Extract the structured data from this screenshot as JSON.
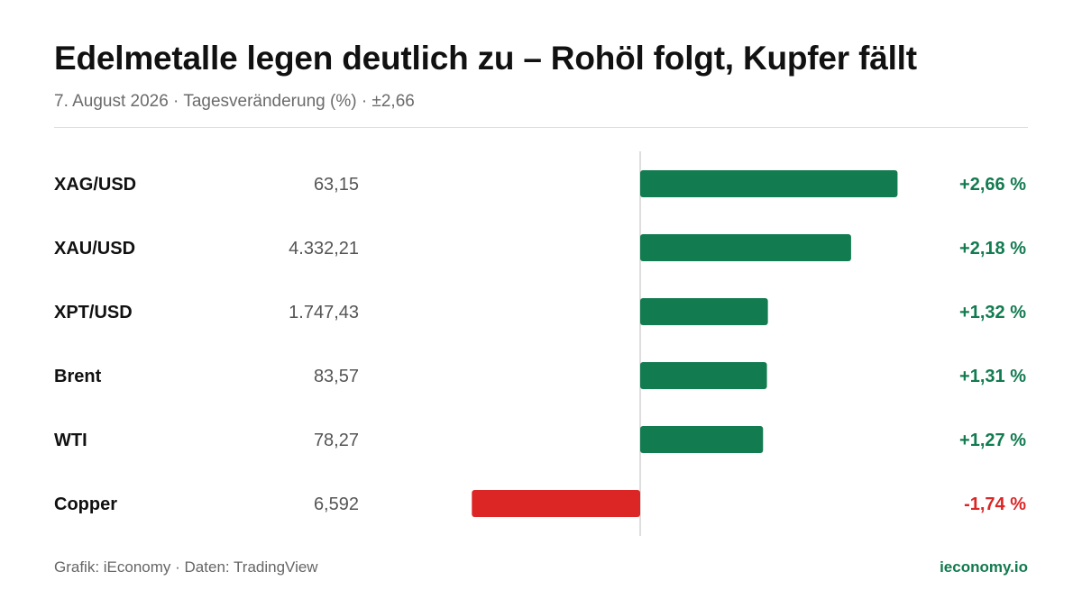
{
  "header": {
    "title": "Edelmetalle legen deutlich zu – Rohöl folgt, Kupfer fällt",
    "subtitle": "7. August 2026 · Tagesveränderung (%) · ±2,66"
  },
  "footer": {
    "source": "Grafik: iEconomy · Daten: TradingView",
    "brand": "ieconomy.io"
  },
  "colors": {
    "positive": "#127b50",
    "negative": "#dc2626",
    "label": "#111111",
    "price": "#555555",
    "axis": "#d4d4d4"
  },
  "chart_data": {
    "type": "bar",
    "orientation": "horizontal",
    "categories": [
      "XAG/USD",
      "XAU/USD",
      "XPT/USD",
      "Brent",
      "WTI",
      "Copper"
    ],
    "prices": [
      "63,15",
      "4.332,21",
      "1.747,43",
      "83,57",
      "78,27",
      "6,592"
    ],
    "values": [
      2.66,
      2.18,
      1.32,
      1.31,
      1.27,
      -1.74
    ],
    "value_labels": [
      "+2,66 %",
      "+2,18 %",
      "+1,32 %",
      "+1,31 %",
      "+1,27 %",
      "-1,74 %"
    ],
    "xlim": [
      -2.66,
      2.66
    ],
    "grid": false,
    "legend": "none"
  }
}
